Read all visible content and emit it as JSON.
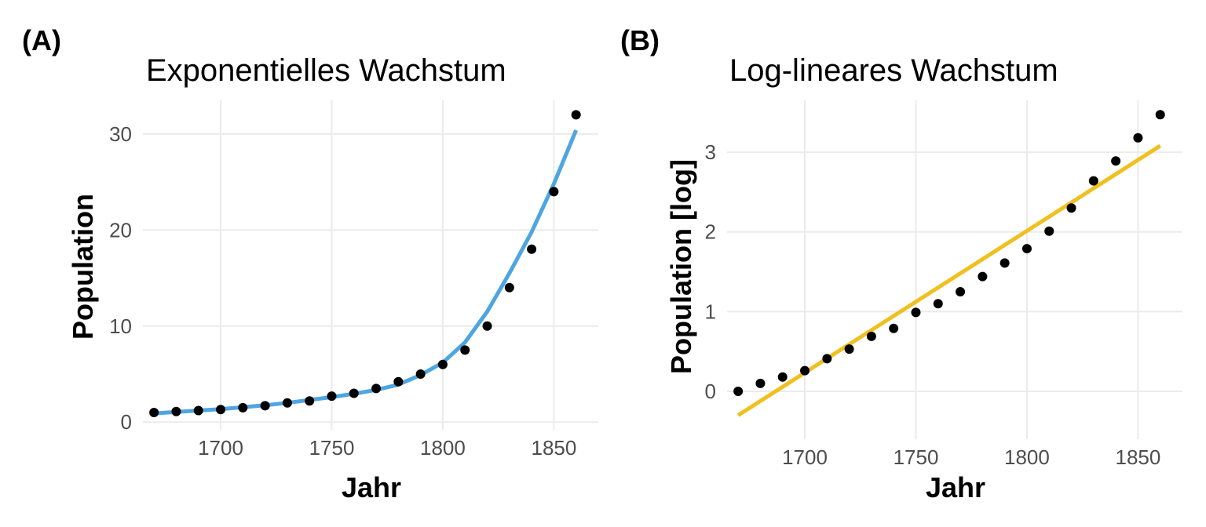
{
  "chart_data": [
    {
      "tag": "(A)",
      "type": "scatter",
      "title": "Exponentielles Wachstum",
      "xlabel": "Jahr",
      "ylabel": "Population",
      "xlim": [
        1665,
        1870
      ],
      "ylim": [
        -0.8,
        33.5
      ],
      "xticks": [
        1700,
        1750,
        1800,
        1850
      ],
      "yticks": [
        0,
        10,
        20,
        30
      ],
      "grid": true,
      "points": {
        "x": [
          1670,
          1680,
          1690,
          1700,
          1710,
          1720,
          1730,
          1740,
          1750,
          1760,
          1770,
          1780,
          1790,
          1800,
          1810,
          1820,
          1830,
          1840,
          1850,
          1860
        ],
        "y": [
          1.0,
          1.1,
          1.2,
          1.3,
          1.5,
          1.7,
          2.0,
          2.2,
          2.7,
          3.0,
          3.5,
          4.2,
          5.0,
          6.0,
          7.5,
          10.0,
          14.0,
          18.0,
          24.0,
          32.0
        ]
      },
      "fit_line": {
        "color": "#4ea5e1",
        "x": [
          1670,
          1680,
          1690,
          1700,
          1710,
          1720,
          1730,
          1740,
          1750,
          1760,
          1770,
          1780,
          1790,
          1800,
          1810,
          1820,
          1830,
          1840,
          1850,
          1860
        ],
        "y": [
          0.9,
          1.05,
          1.2,
          1.35,
          1.55,
          1.75,
          2.0,
          2.3,
          2.6,
          2.95,
          3.35,
          3.9,
          4.9,
          6.2,
          8.3,
          11.5,
          15.5,
          19.8,
          24.8,
          30.4
        ]
      }
    },
    {
      "tag": "(B)",
      "type": "scatter",
      "title": "Log-lineares Wachstum",
      "xlabel": "Jahr",
      "ylabel": "Population [log]",
      "xlim": [
        1665,
        1870
      ],
      "ylim": [
        -0.6,
        3.65
      ],
      "xticks": [
        1700,
        1750,
        1800,
        1850
      ],
      "yticks": [
        0,
        1,
        2,
        3
      ],
      "grid": true,
      "points": {
        "x": [
          1670,
          1680,
          1690,
          1700,
          1710,
          1720,
          1730,
          1740,
          1750,
          1760,
          1770,
          1780,
          1790,
          1800,
          1810,
          1820,
          1830,
          1840,
          1850,
          1860
        ],
        "y": [
          0.0,
          0.1,
          0.18,
          0.26,
          0.41,
          0.53,
          0.69,
          0.79,
          0.99,
          1.1,
          1.25,
          1.44,
          1.61,
          1.79,
          2.01,
          2.3,
          2.64,
          2.89,
          3.18,
          3.47
        ]
      },
      "fit_line": {
        "color": "#f0c020",
        "x": [
          1670,
          1860
        ],
        "y": [
          -0.3,
          3.08
        ]
      }
    }
  ]
}
